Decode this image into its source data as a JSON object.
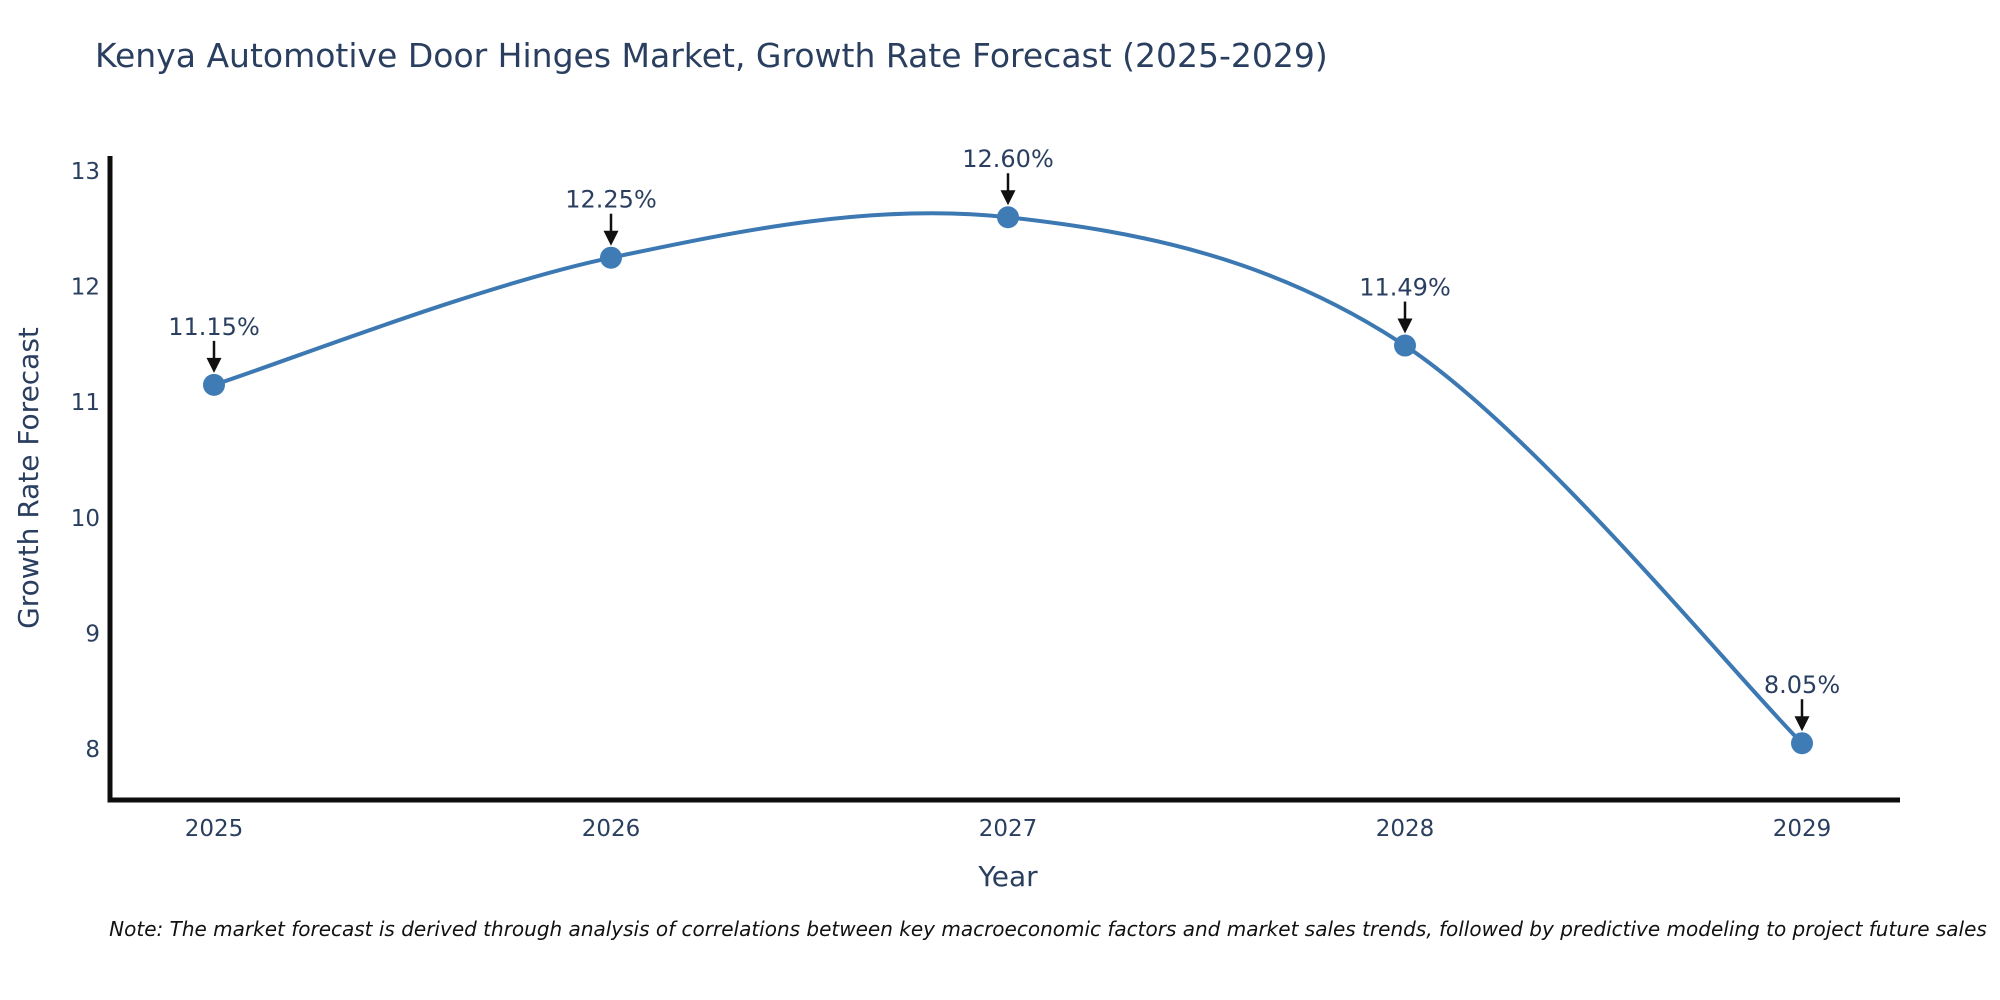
{
  "title": "Kenya Automotive Door Hinges Market, Growth Rate Forecast (2025-2029)",
  "note": "Note: The market forecast is derived through analysis of correlations between key macroeconomic factors and market sales trends, followed by predictive modeling to project future sales",
  "chart_data": {
    "type": "line",
    "line_shape": "spline",
    "x": [
      2025,
      2026,
      2027,
      2028,
      2029
    ],
    "values": [
      11.15,
      12.25,
      12.6,
      11.49,
      8.05
    ],
    "point_labels": [
      "11.15%",
      "12.25%",
      "12.60%",
      "11.49%",
      "8.05%"
    ],
    "xlabel": "Year",
    "ylabel": "Growth Rate Forecast",
    "yticks": [
      8,
      9,
      10,
      11,
      12,
      13
    ],
    "ylim": [
      7.56,
      13.11
    ],
    "grid": false,
    "legend": "none",
    "markers": true,
    "annotations": "value labels with down arrows above each point",
    "colors": {
      "line": "#3c78b2",
      "marker": "#3f7cb6",
      "axis": "#0d0d0d",
      "text": "#2a3f5f",
      "annotation_text": "#2a3f5f",
      "annotation_arrow": "#111111",
      "background": "#ffffff"
    }
  }
}
